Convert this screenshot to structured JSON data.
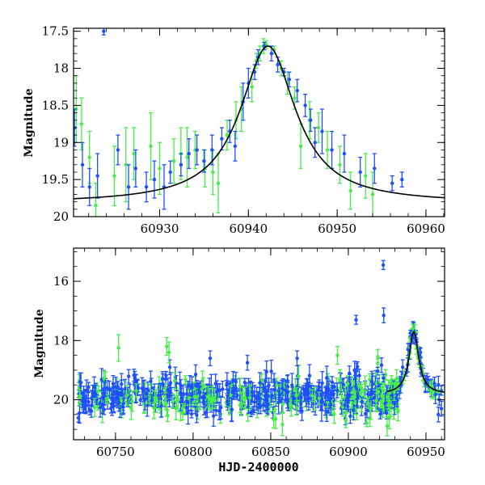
{
  "chart_data": [
    {
      "type": "scatter",
      "title": "",
      "xlabel": "",
      "ylabel": "Magnitude",
      "xlim": [
        60920.3,
        60962.1
      ],
      "ylim": [
        20,
        17.46
      ],
      "y_inverted": true,
      "x_ticks": [
        60930,
        60940,
        60950,
        60960
      ],
      "x_tick_labels": [
        "60930",
        "60940",
        "60950",
        "60960"
      ],
      "y_ticks": [
        17.5,
        18,
        18.5,
        19,
        19.5,
        20
      ],
      "y_tick_labels": [
        "17.5",
        "18",
        "18.5",
        "19",
        "19.5",
        "20"
      ],
      "series": [
        {
          "name": "blue",
          "color": "#1f4fff",
          "points": [
            {
              "x": 60920.4,
              "y": 18.8,
              "err": 0.25
            },
            {
              "x": 60921.3,
              "y": 19.3,
              "err": 0.3
            },
            {
              "x": 60922.1,
              "y": 19.6,
              "err": 0.25
            },
            {
              "x": 60923.0,
              "y": 19.45,
              "err": 0.3
            },
            {
              "x": 60923.7,
              "y": 17.5,
              "err": 0.05
            },
            {
              "x": 60925.3,
              "y": 19.1,
              "err": 0.2
            },
            {
              "x": 60926.5,
              "y": 19.6,
              "err": 0.3
            },
            {
              "x": 60927.3,
              "y": 19.35,
              "err": 0.25
            },
            {
              "x": 60928.5,
              "y": 19.6,
              "err": 0.2
            },
            {
              "x": 60929.4,
              "y": 19.5,
              "err": 0.25
            },
            {
              "x": 60930.5,
              "y": 19.6,
              "err": 0.3
            },
            {
              "x": 60931.2,
              "y": 19.4,
              "err": 0.15
            },
            {
              "x": 60932.4,
              "y": 19.3,
              "err": 0.15
            },
            {
              "x": 60933.3,
              "y": 19.15,
              "err": 0.2
            },
            {
              "x": 60934.2,
              "y": 19.1,
              "err": 0.2
            },
            {
              "x": 60935.0,
              "y": 19.25,
              "err": 0.15
            },
            {
              "x": 60935.9,
              "y": 19.1,
              "err": 0.2
            },
            {
              "x": 60937.0,
              "y": 18.95,
              "err": 0.15
            },
            {
              "x": 60937.9,
              "y": 18.85,
              "err": 0.15
            },
            {
              "x": 60938.5,
              "y": 19.05,
              "err": 0.2
            },
            {
              "x": 60939.4,
              "y": 18.45,
              "err": 0.25
            },
            {
              "x": 60940.0,
              "y": 18.2,
              "err": 0.2
            },
            {
              "x": 60940.7,
              "y": 18.05,
              "err": 0.1
            },
            {
              "x": 60941.1,
              "y": 17.85,
              "err": 0.1
            },
            {
              "x": 60941.8,
              "y": 17.7,
              "err": 0.05
            },
            {
              "x": 60942.6,
              "y": 17.8,
              "err": 0.1
            },
            {
              "x": 60943.3,
              "y": 17.95,
              "err": 0.1
            },
            {
              "x": 60944.0,
              "y": 18.05,
              "err": 0.05
            },
            {
              "x": 60944.6,
              "y": 18.15,
              "err": 0.1
            },
            {
              "x": 60945.5,
              "y": 18.3,
              "err": 0.15
            },
            {
              "x": 60946.4,
              "y": 18.5,
              "err": 0.15
            },
            {
              "x": 60947.0,
              "y": 18.7,
              "err": 0.15
            },
            {
              "x": 60947.5,
              "y": 19.0,
              "err": 0.2
            },
            {
              "x": 60948.3,
              "y": 18.85,
              "err": 0.3
            },
            {
              "x": 60949.4,
              "y": 19.1,
              "err": 0.25
            },
            {
              "x": 60950.8,
              "y": 19.15,
              "err": 0.25
            },
            {
              "x": 60952.6,
              "y": 19.4,
              "err": 0.2
            },
            {
              "x": 60954.2,
              "y": 19.35,
              "err": 0.2
            },
            {
              "x": 60956.2,
              "y": 19.55,
              "err": 0.1
            },
            {
              "x": 60957.3,
              "y": 19.5,
              "err": 0.1
            }
          ]
        },
        {
          "name": "green",
          "color": "#44ee44",
          "points": [
            {
              "x": 60920.6,
              "y": 18.55,
              "err": 0.45
            },
            {
              "x": 60921.2,
              "y": 18.75,
              "err": 0.35
            },
            {
              "x": 60922.1,
              "y": 19.2,
              "err": 0.35
            },
            {
              "x": 60922.8,
              "y": 19.85,
              "err": 0.3
            },
            {
              "x": 60924.9,
              "y": 19.45,
              "err": 0.4
            },
            {
              "x": 60926.2,
              "y": 19.3,
              "err": 0.5
            },
            {
              "x": 60927.1,
              "y": 19.15,
              "err": 0.35
            },
            {
              "x": 60929.0,
              "y": 19.05,
              "err": 0.45
            },
            {
              "x": 60930.0,
              "y": 19.35,
              "err": 0.35
            },
            {
              "x": 60931.6,
              "y": 19.25,
              "err": 0.3
            },
            {
              "x": 60932.4,
              "y": 19.15,
              "err": 0.35
            },
            {
              "x": 60933.1,
              "y": 19.2,
              "err": 0.4
            },
            {
              "x": 60934.0,
              "y": 19.1,
              "err": 0.25
            },
            {
              "x": 60935.1,
              "y": 19.35,
              "err": 0.25
            },
            {
              "x": 60936.0,
              "y": 19.4,
              "err": 0.3
            },
            {
              "x": 60936.6,
              "y": 19.55,
              "err": 0.4
            },
            {
              "x": 60937.6,
              "y": 18.9,
              "err": 0.2
            },
            {
              "x": 60938.6,
              "y": 18.7,
              "err": 0.25
            },
            {
              "x": 60939.2,
              "y": 18.55,
              "err": 0.3
            },
            {
              "x": 60940.4,
              "y": 18.25,
              "err": 0.2
            },
            {
              "x": 60940.9,
              "y": 17.9,
              "err": 0.1
            },
            {
              "x": 60941.3,
              "y": 17.8,
              "err": 0.1
            },
            {
              "x": 60941.7,
              "y": 17.7,
              "err": 0.1
            },
            {
              "x": 60942.0,
              "y": 17.68,
              "err": 0.05
            },
            {
              "x": 60942.9,
              "y": 17.75,
              "err": 0.05
            },
            {
              "x": 60943.7,
              "y": 18.0,
              "err": 0.1
            },
            {
              "x": 60944.4,
              "y": 18.2,
              "err": 0.15
            },
            {
              "x": 60945.2,
              "y": 18.4,
              "err": 0.15
            },
            {
              "x": 60945.9,
              "y": 19.05,
              "err": 0.3
            },
            {
              "x": 60946.9,
              "y": 18.7,
              "err": 0.25
            },
            {
              "x": 60947.9,
              "y": 18.8,
              "err": 0.2
            },
            {
              "x": 60948.9,
              "y": 19.1,
              "err": 0.25
            },
            {
              "x": 60950.3,
              "y": 19.3,
              "err": 0.25
            },
            {
              "x": 60951.5,
              "y": 19.65,
              "err": 0.25
            },
            {
              "x": 60953.2,
              "y": 19.45,
              "err": 0.3
            },
            {
              "x": 60954.0,
              "y": 19.7,
              "err": 0.3
            }
          ]
        }
      ],
      "model": {
        "name": "model-curve",
        "type": "line",
        "color": "#000000",
        "baseline": 19.82,
        "peak_mag": 17.7,
        "peak_x": 60942.2,
        "width": 3.8
      }
    },
    {
      "type": "scatter",
      "title": "",
      "xlabel": "HJD-2400000",
      "ylabel": "Magnitude",
      "xlim": [
        60723,
        60962
      ],
      "ylim": [
        21.35,
        14.88
      ],
      "y_inverted": true,
      "x_ticks": [
        60750,
        60800,
        60850,
        60900,
        60950
      ],
      "x_tick_labels": [
        "60750",
        "60800",
        "60850",
        "60900",
        "60950"
      ],
      "y_ticks": [
        16,
        18,
        20
      ],
      "y_tick_labels": [
        "16",
        "18",
        "20"
      ],
      "series": [
        {
          "name": "blue",
          "color": "#1f4fff",
          "base": 19.85,
          "scatter": 0.28,
          "count": 430,
          "points": [
            {
              "x": 60922.5,
              "y": 15.45,
              "err": 0.15
            },
            {
              "x": 60922.8,
              "y": 17.15,
              "err": 0.25
            },
            {
              "x": 60905.0,
              "y": 17.3,
              "err": 0.15
            },
            {
              "x": 60940.0,
              "y": 17.75,
              "err": 0.1
            },
            {
              "x": 60942.0,
              "y": 17.72,
              "err": 0.1
            },
            {
              "x": 60944.0,
              "y": 18.05,
              "err": 0.1
            },
            {
              "x": 60946.5,
              "y": 18.4,
              "err": 0.15
            },
            {
              "x": 60938.5,
              "y": 18.3,
              "err": 0.2
            },
            {
              "x": 60835.0,
              "y": 18.75,
              "err": 0.25
            },
            {
              "x": 60811.0,
              "y": 18.6,
              "err": 0.25
            },
            {
              "x": 60904.0,
              "y": 19.0,
              "err": 0.3
            },
            {
              "x": 60935.0,
              "y": 18.9,
              "err": 0.25
            },
            {
              "x": 60785.0,
              "y": 18.9,
              "err": 0.25
            },
            {
              "x": 60867.0,
              "y": 18.6,
              "err": 0.25
            },
            {
              "x": 60755.0,
              "y": 20.25,
              "err": 0.25
            },
            {
              "x": 60958.0,
              "y": 20.5,
              "err": 0.25
            },
            {
              "x": 60960.0,
              "y": 20.3,
              "err": 0.25
            }
          ]
        },
        {
          "name": "green",
          "color": "#44ee44",
          "base": 19.95,
          "scatter": 0.32,
          "count": 230,
          "points": [
            {
              "x": 60752.0,
              "y": 18.25,
              "err": 0.45
            },
            {
              "x": 60783.0,
              "y": 18.2,
              "err": 0.3
            },
            {
              "x": 60784.5,
              "y": 18.4,
              "err": 0.35
            },
            {
              "x": 60941.0,
              "y": 17.7,
              "err": 0.1
            },
            {
              "x": 60939.5,
              "y": 17.9,
              "err": 0.15
            },
            {
              "x": 60945.0,
              "y": 18.4,
              "err": 0.2
            },
            {
              "x": 60893.0,
              "y": 18.5,
              "err": 0.3
            },
            {
              "x": 60919.0,
              "y": 18.6,
              "err": 0.3
            }
          ]
        }
      ],
      "model": {
        "name": "model-curve",
        "type": "line",
        "color": "#000000",
        "baseline": 19.82,
        "peak_mag": 17.7,
        "peak_x": 60942.2,
        "width": 3.8,
        "x_start": 60925
      }
    }
  ]
}
